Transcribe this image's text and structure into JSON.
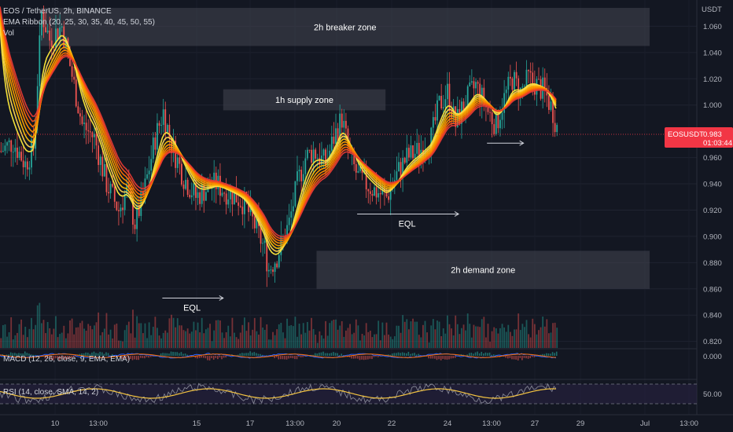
{
  "legend": {
    "symbol_line": "EOS / TetherUS, 2h, BINANCE",
    "ema_line": "EMA Ribbon (20, 25, 30, 35, 40, 45, 50, 55)",
    "vol_line": "Vol"
  },
  "chart_data": {
    "type": "candlestick",
    "currency": "USDT",
    "ylim": [
      0.815,
      1.08
    ],
    "y_ticks": [
      "1.060",
      "1.040",
      "1.020",
      "1.000",
      "0.960",
      "0.940",
      "0.920",
      "0.900",
      "0.880",
      "0.860",
      "0.840",
      "0.820"
    ],
    "x_ticks": [
      "10",
      "13:00",
      "15",
      "17",
      "13:00",
      "20",
      "22",
      "24",
      "13:00",
      "27",
      "29",
      "Jul",
      "13:00"
    ],
    "last_price": {
      "symbol": "EOSUSDT",
      "price": "0.983",
      "countdown": "01:03:44",
      "value": 0.983,
      "color": "#f23645"
    },
    "path_points": [
      [
        0,
        0.965
      ],
      [
        6,
        0.972
      ],
      [
        12,
        0.955
      ],
      [
        16,
        0.968
      ],
      [
        20,
        1.07
      ],
      [
        24,
        1.05
      ],
      [
        30,
        1.06
      ],
      [
        34,
        1.03
      ],
      [
        40,
        0.985
      ],
      [
        46,
        0.975
      ],
      [
        52,
        0.94
      ],
      [
        58,
        0.92
      ],
      [
        62,
        0.935
      ],
      [
        66,
        0.91
      ],
      [
        70,
        0.93
      ],
      [
        74,
        0.96
      ],
      [
        76,
        0.975
      ],
      [
        80,
        0.995
      ],
      [
        84,
        0.97
      ],
      [
        90,
        0.945
      ],
      [
        96,
        0.93
      ],
      [
        100,
        0.935
      ],
      [
        106,
        0.94
      ],
      [
        110,
        0.935
      ],
      [
        116,
        0.93
      ],
      [
        120,
        0.925
      ],
      [
        126,
        0.905
      ],
      [
        130,
        0.89
      ],
      [
        132,
        0.875
      ],
      [
        136,
        0.885
      ],
      [
        142,
        0.91
      ],
      [
        146,
        0.94
      ],
      [
        150,
        0.96
      ],
      [
        154,
        0.965
      ],
      [
        160,
        0.955
      ],
      [
        164,
        0.975
      ],
      [
        168,
        0.99
      ],
      [
        172,
        0.96
      ],
      [
        176,
        0.945
      ],
      [
        180,
        0.94
      ],
      [
        184,
        0.935
      ],
      [
        190,
        0.93
      ],
      [
        196,
        0.95
      ],
      [
        200,
        0.96
      ],
      [
        206,
        0.965
      ],
      [
        212,
        0.975
      ],
      [
        216,
        1.0
      ],
      [
        220,
        1.01
      ],
      [
        224,
        0.985
      ],
      [
        228,
        1.0
      ],
      [
        234,
        1.015
      ],
      [
        240,
        0.995
      ],
      [
        244,
        0.985
      ],
      [
        248,
        1.005
      ],
      [
        252,
        1.02
      ],
      [
        256,
        1.01
      ],
      [
        260,
        1.02
      ],
      [
        264,
        1.015
      ],
      [
        268,
        1.01
      ],
      [
        272,
        0.995
      ],
      [
        274,
        0.983
      ]
    ],
    "zones": [
      {
        "label": "2h breaker zone",
        "top": 1.074,
        "bottom": 1.045,
        "from": 20,
        "to": 330
      },
      {
        "label": "1h supply zone",
        "top": 1.012,
        "bottom": 0.996,
        "from": 110,
        "to": 190
      },
      {
        "label": "2h demand zone",
        "top": 0.889,
        "bottom": 0.86,
        "from": 156,
        "to": 330
      }
    ],
    "annotations": [
      {
        "label": "EQL",
        "from": 80,
        "to": 110,
        "y": 0.853
      },
      {
        "label": "EQL",
        "from": 176,
        "to": 226,
        "y": 0.917
      },
      {
        "label": "",
        "from": 240,
        "to": 258,
        "y": 0.971
      }
    ],
    "macd": {
      "label": "MACD (12, 26, close, 9, EMA, EMA)",
      "value": "0.000"
    },
    "rsi": {
      "label": "RSI (14, close, SMA, 14, 2)",
      "value": "50.00"
    }
  }
}
